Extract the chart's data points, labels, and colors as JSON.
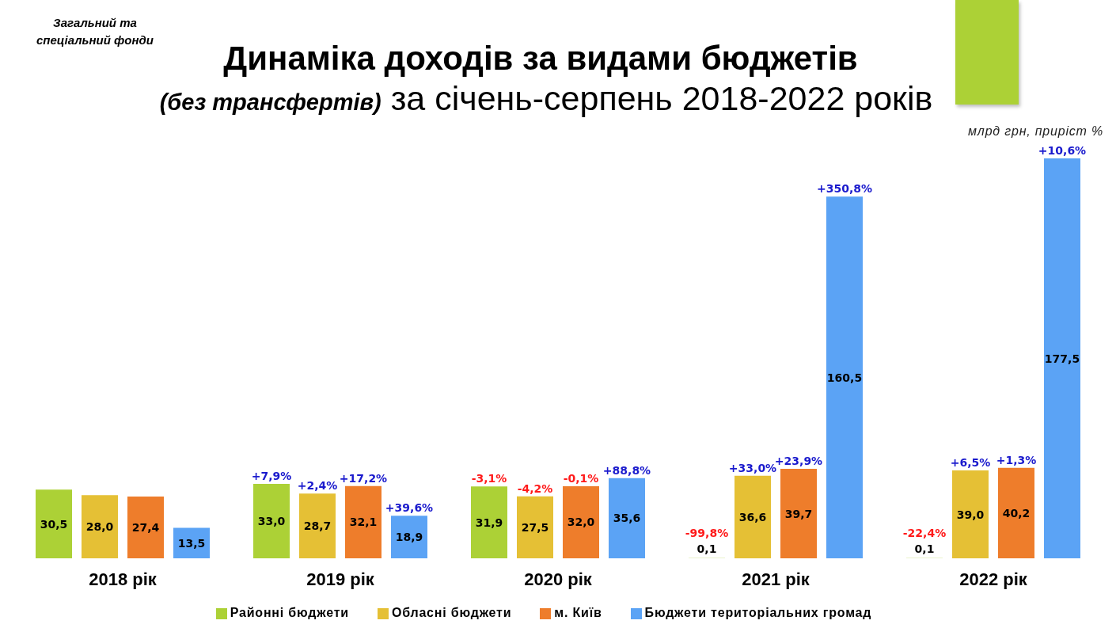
{
  "chart_data": {
    "type": "bar",
    "title": "Динаміка доходів за видами бюджетів",
    "subtitle": "(без трансфертів) за січень-серпень 2018-2022 років",
    "ylabel": "млрд грн, приріст %",
    "categories": [
      "2018 рік",
      "2019 рік",
      "2020 рік",
      "2021 рік",
      "2022 рік"
    ],
    "series": [
      {
        "name": "Районні бюджети",
        "color": "#acd136",
        "values": [
          30.5,
          33.0,
          31.9,
          0.1,
          0.1
        ],
        "value_labels": [
          "30,5",
          "33,0",
          "31,9",
          "0,1",
          "0,1"
        ]
      },
      {
        "name": "Обласні бюджети",
        "color": "#e5c035",
        "values": [
          28.0,
          28.7,
          27.5,
          36.6,
          39.0
        ],
        "value_labels": [
          "28,0",
          "28,7",
          "27,5",
          "36,6",
          "39,0"
        ]
      },
      {
        "name": "м. Київ",
        "color": "#ee7d2b",
        "values": [
          27.4,
          32.1,
          32.0,
          39.7,
          40.2
        ],
        "value_labels": [
          "27,4",
          "32,1",
          "32,0",
          "39,7",
          "40,2"
        ]
      },
      {
        "name": "Бюджети територіальних громад",
        "color": "#5ba3f5",
        "values": [
          13.5,
          18.9,
          35.6,
          160.5,
          177.5
        ],
        "value_labels": [
          "13,5",
          "18,9",
          "35,6",
          "160,5",
          "177,5"
        ]
      }
    ],
    "legend": "bottom",
    "annotations": [
      "Загальний та спеціальний фонди",
      "+7,9%",
      "+2,4%",
      "+17,2%",
      "+39,6%",
      "-3,1%",
      "-4,2%",
      "-0,1%",
      "+88,8%",
      "-99,8%",
      "+33,0%",
      "+23,9%",
      "+350,8%",
      "-22,4%",
      "+6,5%",
      "+1,3%",
      "+10,6%"
    ]
  }
}
